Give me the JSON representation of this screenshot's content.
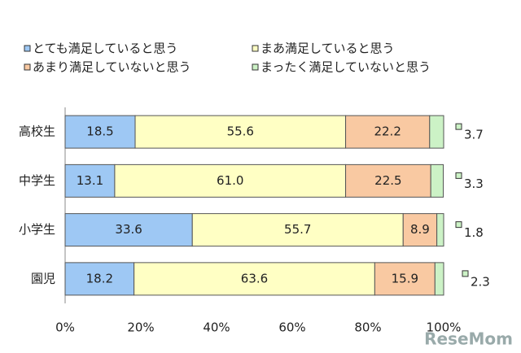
{
  "chart_data": {
    "type": "stacked-bar-horizontal",
    "categories": [
      "高校生",
      "中学生",
      "小学生",
      "園児"
    ],
    "series": [
      {
        "name": "とても満足していると思う",
        "color": "#9ec8f4",
        "values": [
          18.5,
          13.1,
          33.6,
          18.2
        ]
      },
      {
        "name": "まあ満足していると思う",
        "color": "#ffffc4",
        "values": [
          55.6,
          61.0,
          55.7,
          63.6
        ],
        "value_labels": [
          "55.6",
          "61.0",
          "55.7",
          "63.6"
        ]
      },
      {
        "name": "あまり満足していないと思う",
        "color": "#f9c9a2",
        "values": [
          22.2,
          22.5,
          8.9,
          15.9
        ]
      },
      {
        "name": "まったく満足していないと思う",
        "color": "#ccf2c6",
        "values": [
          3.7,
          3.3,
          1.8,
          2.3
        ]
      }
    ],
    "xlim": [
      0,
      100
    ],
    "xticks": [
      {
        "value": 0,
        "label": "0%"
      },
      {
        "value": 20,
        "label": "20%"
      },
      {
        "value": 40,
        "label": "40%"
      },
      {
        "value": 60,
        "label": "60%"
      },
      {
        "value": 80,
        "label": "80%"
      },
      {
        "value": 100,
        "label": "100%"
      }
    ],
    "watermark": "ReseMom"
  }
}
